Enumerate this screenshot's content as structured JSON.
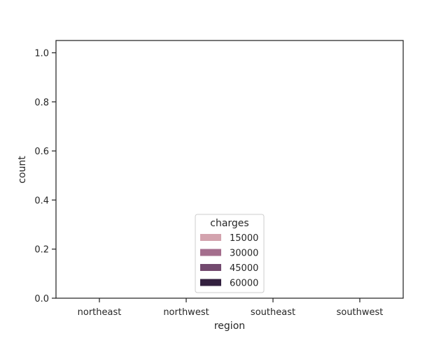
{
  "chart_data": {
    "type": "bar",
    "title": "",
    "xlabel": "region",
    "ylabel": "count",
    "categories": [
      "northeast",
      "northwest",
      "southeast",
      "southwest"
    ],
    "ylim": [
      0.0,
      1.05
    ],
    "yticks": [
      0.0,
      0.2,
      0.4,
      0.6,
      0.8,
      1.0
    ],
    "ytick_labels": [
      "0.0",
      "0.2",
      "0.4",
      "0.6",
      "0.8",
      "1.0"
    ],
    "grid": false,
    "series": [],
    "legend": {
      "title": "charges",
      "placement": "lower-center",
      "entries": [
        {
          "label": "15000",
          "color": "#d3a3ae"
        },
        {
          "label": "30000",
          "color": "#a46e8d"
        },
        {
          "label": "45000",
          "color": "#734a6f"
        },
        {
          "label": "60000",
          "color": "#33203f"
        }
      ]
    }
  }
}
